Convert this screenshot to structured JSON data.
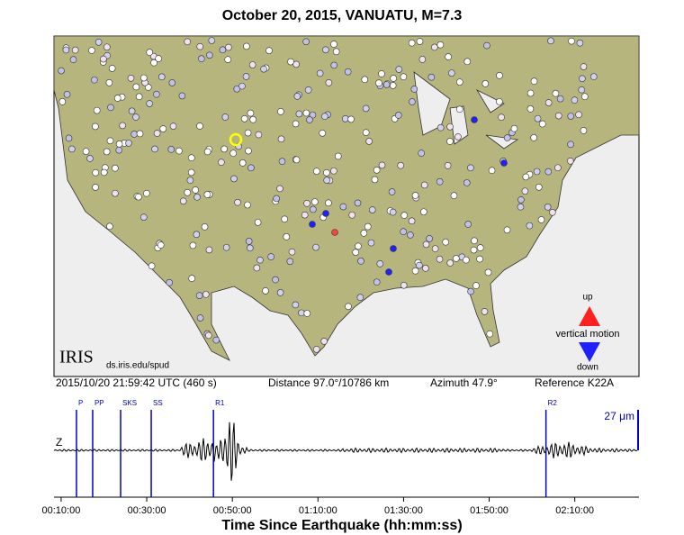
{
  "title": "October 20, 2015, VANUATU, M=7.3",
  "map": {
    "legend": {
      "up": "up",
      "label": "vertical motion",
      "down": "down"
    },
    "logo": "IRIS",
    "url": "ds.iris.edu/spud"
  },
  "info": {
    "time": "2015/10/20 21:59:42 UTC (460 s)",
    "distance": "Distance  97.0°/10786 km",
    "azimuth": "Azimuth  47.9°",
    "reference": "Reference K22A"
  },
  "seismogram": {
    "component": "Z",
    "scale": "27 μm",
    "xlim": [
      500,
      8700
    ],
    "xticks": [
      {
        "value": 600,
        "label": "00:10:00"
      },
      {
        "value": 1800,
        "label": "00:30:00"
      },
      {
        "value": 3000,
        "label": "00:50:00"
      },
      {
        "value": 4200,
        "label": "01:10:00"
      },
      {
        "value": 5400,
        "label": "01:30:00"
      },
      {
        "value": 6600,
        "label": "01:50:00"
      },
      {
        "value": 7800,
        "label": "02:10:00"
      }
    ],
    "xlabel": "Time Since Earthquake (hh:mm:ss)",
    "phases": [
      {
        "name": "P",
        "time": 815
      },
      {
        "name": "PP",
        "time": 1042
      },
      {
        "name": "SKS",
        "time": 1434
      },
      {
        "name": "SS",
        "time": 1863
      },
      {
        "name": "R1",
        "time": 2735
      },
      {
        "name": "R2",
        "time": 7396
      }
    ]
  }
}
